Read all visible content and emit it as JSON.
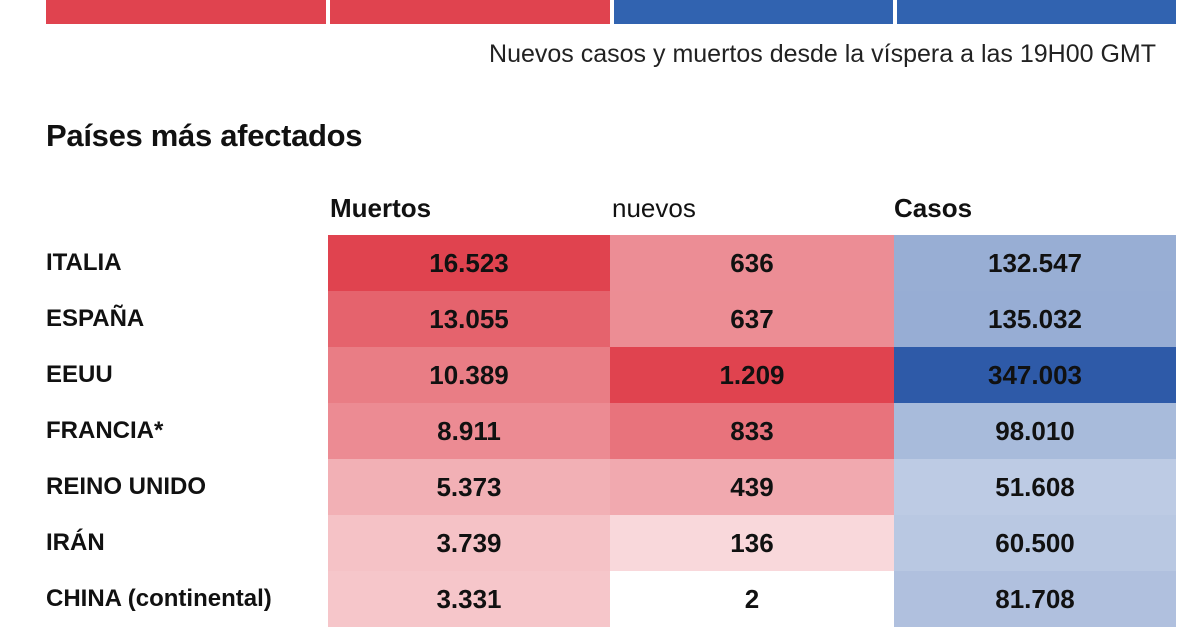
{
  "subtitle": "Nuevos casos y muertos desde la víspera a las 19H00 GMT",
  "section_title": "Países más afectados",
  "columns": [
    "Muertos",
    "nuevos",
    "Casos"
  ],
  "colors": {
    "red_strong": "#e0434f",
    "blue_strong": "#2e5aa8",
    "top_red": "#e0434f",
    "top_blue": "#3163b0"
  },
  "chart_data": {
    "type": "table",
    "title": "Países más afectados",
    "columns": [
      "Muertos",
      "nuevos",
      "Casos"
    ],
    "rows": [
      {
        "country": "ITALIA",
        "muertos": "16.523",
        "nuevos": "636",
        "casos": "132.547"
      },
      {
        "country": "ESPAÑA",
        "muertos": "13.055",
        "nuevos": "637",
        "casos": "135.032"
      },
      {
        "country": "EEUU",
        "muertos": "10.389",
        "nuevos": "1.209",
        "casos": "347.003"
      },
      {
        "country": "FRANCIA*",
        "muertos": "8.911",
        "nuevos": "833",
        "casos": "98.010"
      },
      {
        "country": "REINO UNIDO",
        "muertos": "5.373",
        "nuevos": "439",
        "casos": "51.608"
      },
      {
        "country": "IRÁN",
        "muertos": "3.739",
        "nuevos": "136",
        "casos": "60.500"
      },
      {
        "country": "CHINA (continental)",
        "muertos": "3.331",
        "nuevos": "2",
        "casos": "81.708"
      }
    ]
  }
}
